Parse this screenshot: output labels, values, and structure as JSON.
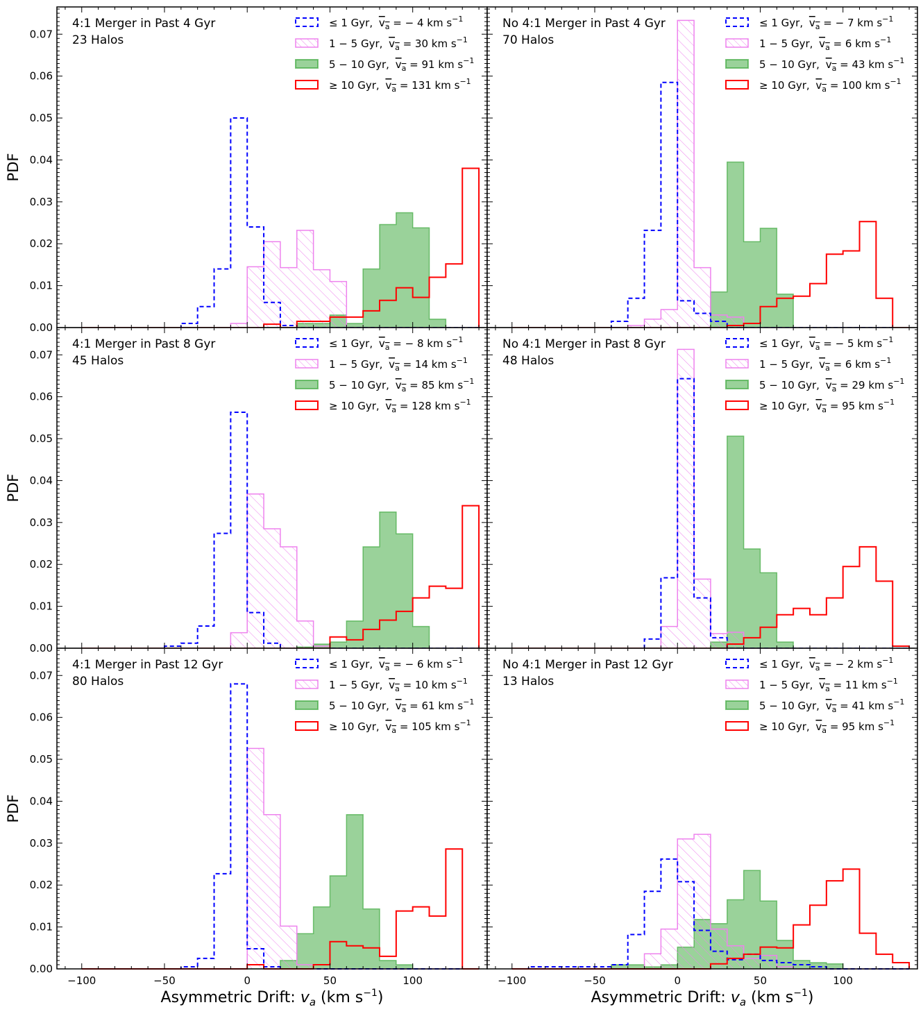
{
  "figure": {
    "x_axis_label": "Asymmetric Drift",
    "x_axis_symbol": "v",
    "x_axis_subscript": "a",
    "x_axis_units": "(km s",
    "x_axis_units_exp": "−1",
    "y_axis_label": "PDF",
    "legend_unit": "km s",
    "legend_unit_exp": "−1"
  },
  "chart_data": {
    "type": "histogram",
    "layout": "3 rows x 2 columns, shared axes",
    "xlabel": "Asymmetric Drift: v_a (km s^-1)",
    "ylabel": "PDF",
    "xlim": [
      -115,
      145
    ],
    "ylim": [
      0,
      0.0765
    ],
    "x_ticks": [
      -100,
      -50,
      0,
      50,
      100
    ],
    "y_ticks": [
      0.0,
      0.01,
      0.02,
      0.03,
      0.04,
      0.05,
      0.06,
      0.07
    ],
    "bin_edges": [
      -100,
      -90,
      -80,
      -70,
      -60,
      -50,
      -40,
      -30,
      -20,
      -10,
      0,
      10,
      20,
      30,
      40,
      50,
      60,
      70,
      80,
      90,
      100,
      110,
      120,
      130,
      140
    ],
    "series_styles": [
      {
        "age": "≤ 1 Gyr",
        "color": "#0000ff",
        "style": "dashed step"
      },
      {
        "age": "1 − 5 Gyr",
        "color": "#ee82ee",
        "style": "hatched fill"
      },
      {
        "age": "5 − 10 Gyr",
        "color": "#2ca02c",
        "style": "filled, alpha 0.5"
      },
      {
        "age": "≥ 10 Gyr",
        "color": "#ff0000",
        "style": "solid step"
      }
    ],
    "panels": [
      {
        "title": "4:1 Merger in Past 4 Gyr",
        "subtitle": "23 Halos",
        "series": [
          {
            "name": "≤ 1 Gyr",
            "mean_label": "− 4",
            "values": [
              0,
              0,
              0,
              0,
              0,
              0,
              0.001,
              0.005,
              0.014,
              0.05,
              0.024,
              0.006,
              0.0005,
              0,
              0,
              0,
              0,
              0,
              0,
              0,
              0,
              0,
              0,
              0
            ]
          },
          {
            "name": "1 − 5 Gyr",
            "mean_label": "30",
            "values": [
              0,
              0,
              0,
              0,
              0,
              0,
              0,
              0,
              0,
              0.001,
              0.0145,
              0.0205,
              0.0143,
              0.0232,
              0.0138,
              0.011,
              0,
              0,
              0,
              0,
              0,
              0,
              0,
              0
            ]
          },
          {
            "name": "5 − 10 Gyr",
            "mean_label": "91",
            "values": [
              0,
              0,
              0,
              0,
              0,
              0,
              0,
              0,
              0,
              0,
              0,
              0,
              0,
              0.001,
              0.001,
              0.003,
              0.001,
              0.014,
              0.0246,
              0.0274,
              0.0238,
              0.002,
              0,
              0
            ]
          },
          {
            "name": "≥ 10 Gyr",
            "mean_label": "131",
            "values": [
              0,
              0,
              0,
              0,
              0,
              0,
              0,
              0,
              0,
              0,
              0,
              0.0008,
              0,
              0.0015,
              0.0015,
              0.0025,
              0.0025,
              0.004,
              0.0065,
              0.0095,
              0.0072,
              0.012,
              0.0152,
              0.038
            ]
          }
        ]
      },
      {
        "title": "No 4:1 Merger in Past 4 Gyr",
        "subtitle": "70 Halos",
        "series": [
          {
            "name": "≤ 1 Gyr",
            "mean_label": "− 7",
            "values": [
              0,
              0,
              0,
              0,
              0,
              0,
              0.0015,
              0.007,
              0.0232,
              0.0585,
              0.0064,
              0.0034,
              0.0015,
              0,
              0,
              0,
              0,
              0,
              0,
              0,
              0,
              0,
              0,
              0
            ]
          },
          {
            "name": "1 − 5 Gyr",
            "mean_label": "6",
            "values": [
              0,
              0,
              0,
              0,
              0,
              0,
              0,
              0.0005,
              0.002,
              0.0043,
              0.0733,
              0.0143,
              0.003,
              0.0025,
              0,
              0,
              0,
              0,
              0,
              0,
              0,
              0,
              0,
              0
            ]
          },
          {
            "name": "5 − 10 Gyr",
            "mean_label": "43",
            "values": [
              0,
              0,
              0,
              0,
              0,
              0,
              0,
              0,
              0,
              0,
              0,
              0,
              0.0085,
              0.0395,
              0.0205,
              0.0237,
              0.008,
              0,
              0,
              0,
              0,
              0,
              0,
              0
            ]
          },
          {
            "name": "≥ 10 Gyr",
            "mean_label": "100",
            "values": [
              0,
              0,
              0,
              0,
              0,
              0,
              0,
              0,
              0,
              0,
              0,
              0,
              0,
              0.0005,
              0.001,
              0.005,
              0.007,
              0.0075,
              0.0105,
              0.0175,
              0.0183,
              0.0253,
              0.007,
              0
            ]
          }
        ]
      },
      {
        "title": "4:1 Merger in Past 8 Gyr",
        "subtitle": "45 Halos",
        "series": [
          {
            "name": "≤ 1 Gyr",
            "mean_label": "− 8",
            "values": [
              0,
              0,
              0,
              0,
              0,
              0.0005,
              0.0012,
              0.0053,
              0.0274,
              0.0563,
              0.0085,
              0.0012,
              0,
              0,
              0,
              0,
              0,
              0,
              0,
              0,
              0,
              0,
              0,
              0
            ]
          },
          {
            "name": "1 − 5 Gyr",
            "mean_label": "14",
            "values": [
              0,
              0,
              0,
              0,
              0,
              0,
              0,
              0,
              0,
              0.0037,
              0.0368,
              0.0285,
              0.0242,
              0.0065,
              0.0005,
              0,
              0,
              0,
              0,
              0,
              0,
              0,
              0,
              0
            ]
          },
          {
            "name": "5 − 10 Gyr",
            "mean_label": "85",
            "values": [
              0,
              0,
              0,
              0,
              0,
              0,
              0,
              0,
              0,
              0,
              0,
              0,
              0,
              0.0003,
              0.001,
              0.0015,
              0.0065,
              0.0242,
              0.0325,
              0.0273,
              0.0052,
              0,
              0,
              0
            ]
          },
          {
            "name": "≥ 10 Gyr",
            "mean_label": "128",
            "values": [
              0,
              0,
              0,
              0,
              0,
              0,
              0,
              0,
              0,
              0,
              0,
              0,
              0,
              0,
              0,
              0.0027,
              0.002,
              0.0045,
              0.0067,
              0.0088,
              0.012,
              0.0148,
              0.0143,
              0.034
            ]
          }
        ]
      },
      {
        "title": "No 4:1 Merger in Past 8 Gyr",
        "subtitle": "48 Halos",
        "series": [
          {
            "name": "≤ 1 Gyr",
            "mean_label": "− 5",
            "values": [
              0,
              0,
              0,
              0,
              0,
              0,
              0,
              0,
              0.0022,
              0.0168,
              0.0643,
              0.012,
              0.0025,
              0,
              0,
              0,
              0,
              0,
              0,
              0,
              0,
              0,
              0,
              0
            ]
          },
          {
            "name": "1 − 5 Gyr",
            "mean_label": "6",
            "values": [
              0,
              0,
              0,
              0,
              0,
              0,
              0,
              0,
              0,
              0.0052,
              0.0713,
              0.0165,
              0.0035,
              0.0038,
              0,
              0,
              0,
              0,
              0,
              0,
              0,
              0,
              0,
              0
            ]
          },
          {
            "name": "5 − 10 Gyr",
            "mean_label": "29",
            "values": [
              0,
              0,
              0,
              0,
              0,
              0,
              0,
              0,
              0,
              0,
              0,
              0,
              0.0015,
              0.0506,
              0.0237,
              0.018,
              0.0015,
              0,
              0,
              0,
              0,
              0,
              0,
              0
            ]
          },
          {
            "name": "≥ 10 Gyr",
            "mean_label": "95",
            "values": [
              0,
              0,
              0,
              0,
              0,
              0,
              0,
              0,
              0,
              0,
              0,
              0,
              0,
              0.001,
              0.0025,
              0.005,
              0.008,
              0.0095,
              0.008,
              0.012,
              0.0195,
              0.0242,
              0.016,
              0.0005
            ]
          }
        ]
      },
      {
        "title": "4:1 Merger in Past 12 Gyr",
        "subtitle": "80 Halos",
        "series": [
          {
            "name": "≤ 1 Gyr",
            "mean_label": "− 6",
            "values": [
              0,
              0,
              0,
              0,
              0,
              0,
              0.0005,
              0.0025,
              0.0227,
              0.068,
              0.0048,
              0.0005,
              0,
              0,
              0,
              0,
              0,
              0,
              0,
              0,
              0,
              0,
              0,
              0
            ]
          },
          {
            "name": "1 − 5 Gyr",
            "mean_label": "10",
            "values": [
              0,
              0,
              0,
              0,
              0,
              0,
              0,
              0,
              0,
              0,
              0.0526,
              0.0368,
              0.0102,
              0.001,
              0,
              0,
              0,
              0,
              0,
              0,
              0,
              0,
              0,
              0
            ]
          },
          {
            "name": "5 − 10 Gyr",
            "mean_label": "61",
            "values": [
              0,
              0,
              0,
              0,
              0,
              0,
              0,
              0,
              0,
              0,
              0,
              0,
              0.002,
              0.0084,
              0.0148,
              0.0222,
              0.0368,
              0.0143,
              0.002,
              0.001,
              0,
              0,
              0,
              0
            ]
          },
          {
            "name": "≥ 10 Gyr",
            "mean_label": "105",
            "values": [
              0,
              0,
              0,
              0,
              0,
              0,
              0,
              0,
              0,
              0,
              0.001,
              0,
              0,
              0,
              0.001,
              0.0065,
              0.0055,
              0.005,
              0.003,
              0.0138,
              0.0148,
              0.0126,
              0.0286,
              0
            ]
          }
        ]
      },
      {
        "title": "No 4:1 Merger in Past 12 Gyr",
        "subtitle": "13 Halos",
        "series": [
          {
            "name": "≤ 1 Gyr",
            "mean_label": "− 2",
            "values": [
              0,
              0.0005,
              0.0005,
              0.0005,
              0.0005,
              0.0005,
              0.001,
              0.0082,
              0.0185,
              0.0262,
              0.0208,
              0.0092,
              0.0042,
              0.0022,
              0.0035,
              0.002,
              0.0015,
              0.001,
              0.0005,
              0,
              0,
              0,
              0,
              0
            ]
          },
          {
            "name": "1 − 5 Gyr",
            "mean_label": "11",
            "values": [
              0,
              0,
              0,
              0,
              0,
              0,
              0,
              0,
              0.0036,
              0.0095,
              0.031,
              0.0321,
              0.0095,
              0.0055,
              0.0025,
              0.0032,
              0.0005,
              0,
              0,
              0,
              0,
              0,
              0,
              0
            ]
          },
          {
            "name": "5 − 10 Gyr",
            "mean_label": "41",
            "values": [
              0,
              0,
              0,
              0,
              0,
              0,
              0.001,
              0.001,
              0.0005,
              0.001,
              0.0052,
              0.0118,
              0.0108,
              0.0165,
              0.0235,
              0.0162,
              0.0068,
              0.002,
              0.0015,
              0.0012,
              0,
              0,
              0,
              0
            ]
          },
          {
            "name": "≥ 10 Gyr",
            "mean_label": "95",
            "values": [
              0,
              0,
              0,
              0,
              0,
              0,
              0,
              0,
              0,
              0,
              0,
              0,
              0.0012,
              0.0025,
              0.0035,
              0.0052,
              0.005,
              0.0105,
              0.0152,
              0.021,
              0.0238,
              0.0085,
              0.0035,
              0.0015
            ]
          }
        ]
      }
    ]
  }
}
